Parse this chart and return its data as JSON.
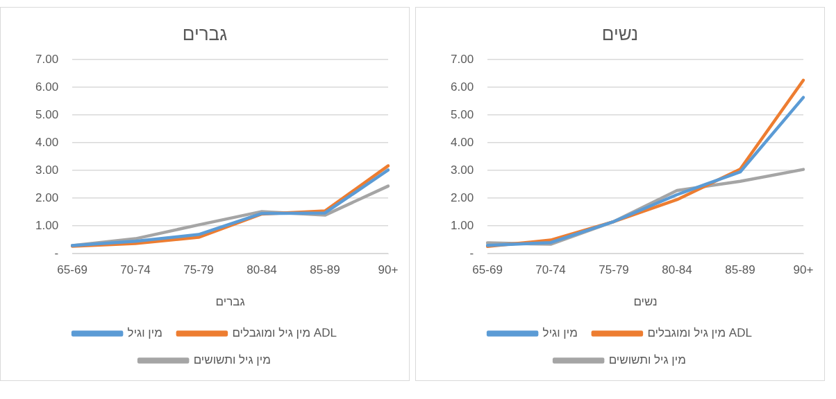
{
  "chart_data": [
    {
      "type": "line",
      "title": "גברים",
      "xlabel": "גברים",
      "categories": [
        "65-69",
        "70-74",
        "75-79",
        "80-84",
        "85-89",
        "90+"
      ],
      "series": [
        {
          "name": "מין וגיל",
          "color": "#5b9bd5",
          "values": [
            0.29,
            0.45,
            0.69,
            1.45,
            1.47,
            3.02
          ]
        },
        {
          "name": "מין גיל ומוגבלים ADL",
          "color": "#ed7d31",
          "values": [
            0.27,
            0.37,
            0.59,
            1.43,
            1.54,
            3.17
          ]
        },
        {
          "name": "מין גיל ותשושים",
          "color": "#a5a5a5",
          "values": [
            0.29,
            0.54,
            1.04,
            1.52,
            1.39,
            2.44
          ]
        }
      ],
      "ylim": [
        0,
        7
      ],
      "yticks": [
        {
          "value": 0,
          "label": "-"
        },
        {
          "value": 1,
          "label": "1.00"
        },
        {
          "value": 2,
          "label": "2.00"
        },
        {
          "value": 3,
          "label": "3.00"
        },
        {
          "value": 4,
          "label": "4.00"
        },
        {
          "value": 5,
          "label": "5.00"
        },
        {
          "value": 6,
          "label": "6.00"
        },
        {
          "value": 7,
          "label": "7.00"
        }
      ],
      "grid": "y",
      "legend": "bottom",
      "marker": "none"
    },
    {
      "type": "line",
      "title": "נשים",
      "xlabel": "נשים",
      "categories": [
        "65-69",
        "70-74",
        "75-79",
        "80-84",
        "85-89",
        "90+"
      ],
      "series": [
        {
          "name": "מין וגיל",
          "color": "#5b9bd5",
          "values": [
            0.3,
            0.4,
            1.16,
            2.13,
            2.95,
            5.64
          ]
        },
        {
          "name": "מין גיל ומוגבלים ADL",
          "color": "#ed7d31",
          "values": [
            0.26,
            0.49,
            1.16,
            1.95,
            3.05,
            6.26
          ]
        },
        {
          "name": "מין גיל ותשושים",
          "color": "#a5a5a5",
          "values": [
            0.39,
            0.34,
            1.16,
            2.28,
            2.61,
            3.04
          ]
        }
      ],
      "ylim": [
        0,
        7
      ],
      "yticks": [
        {
          "value": 0,
          "label": "-"
        },
        {
          "value": 1,
          "label": "1.00"
        },
        {
          "value": 2,
          "label": "2.00"
        },
        {
          "value": 3,
          "label": "3.00"
        },
        {
          "value": 4,
          "label": "4.00"
        },
        {
          "value": 5,
          "label": "5.00"
        },
        {
          "value": 6,
          "label": "6.00"
        },
        {
          "value": 7,
          "label": "7.00"
        }
      ],
      "grid": "y",
      "legend": "bottom",
      "marker": "none"
    }
  ]
}
